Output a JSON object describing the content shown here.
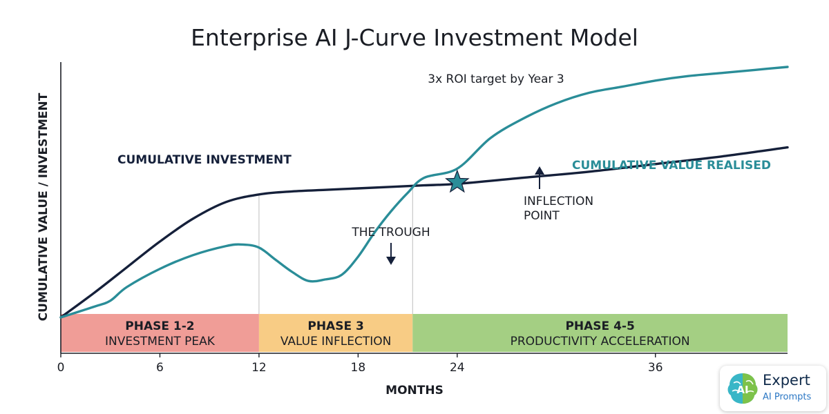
{
  "chart_data": {
    "type": "line",
    "title": "Enterprise AI J-Curve Investment Model",
    "subtitle": "3x ROI target by Year 3",
    "xlabel": "MONTHS",
    "ylabel": "CUMULATIVE VALUE / INVESTMENT",
    "xlim": [
      0,
      44
    ],
    "x_ticks": [
      0,
      6,
      12,
      18,
      24,
      36
    ],
    "x_tick_labels": [
      "0",
      "6",
      "12",
      "18",
      "24",
      "36"
    ],
    "grid": false,
    "series": [
      {
        "name": "CUMULATIVE INVESTMENT",
        "color": "#15203a",
        "x": [
          0,
          2,
          4,
          6,
          8,
          10,
          12,
          14,
          16,
          18,
          20,
          22,
          24,
          28,
          32,
          36,
          40,
          44
        ],
        "y": [
          0,
          16,
          33,
          50,
          65,
          76,
          81,
          83,
          84,
          85,
          86,
          87,
          88,
          92,
          96,
          101,
          106,
          112
        ]
      },
      {
        "name": "CUMULATIVE VALUE REALISED",
        "color": "#2a8d98",
        "x": [
          0,
          2,
          3,
          4,
          6,
          8,
          10,
          11,
          12,
          13,
          14,
          15,
          16,
          17,
          18,
          19,
          20,
          21,
          22,
          24,
          26,
          28,
          30,
          32,
          34,
          36,
          38,
          40,
          42,
          44
        ],
        "y": [
          0,
          7,
          11,
          20,
          32,
          41,
          47,
          48,
          46,
          38,
          30,
          24,
          25,
          28,
          40,
          56,
          70,
          82,
          92,
          98,
          118,
          131,
          141,
          148,
          152,
          156,
          159,
          161,
          163,
          165
        ]
      }
    ],
    "phases": [
      {
        "title": "PHASE 1-2",
        "subtitle": "INVESTMENT PEAK",
        "start": 0,
        "end": 12,
        "color": "#f09d97"
      },
      {
        "title": "PHASE 3",
        "subtitle": "VALUE INFLECTION",
        "start": 12,
        "end": 21.3,
        "color": "#f8cc85"
      },
      {
        "title": "PHASE 4-5",
        "subtitle": "PRODUCTIVITY ACCELERATION",
        "start": 21.3,
        "end": 44,
        "color": "#a4cf83"
      }
    ],
    "annotations": [
      {
        "text": "THE TROUGH",
        "x": 16.8,
        "y": 25
      },
      {
        "text": "INFLECTION POINT",
        "x": 24,
        "y": 89
      }
    ]
  },
  "logo": {
    "line1": "Expert",
    "line2": "AI Prompts",
    "mark_text": "AI"
  }
}
